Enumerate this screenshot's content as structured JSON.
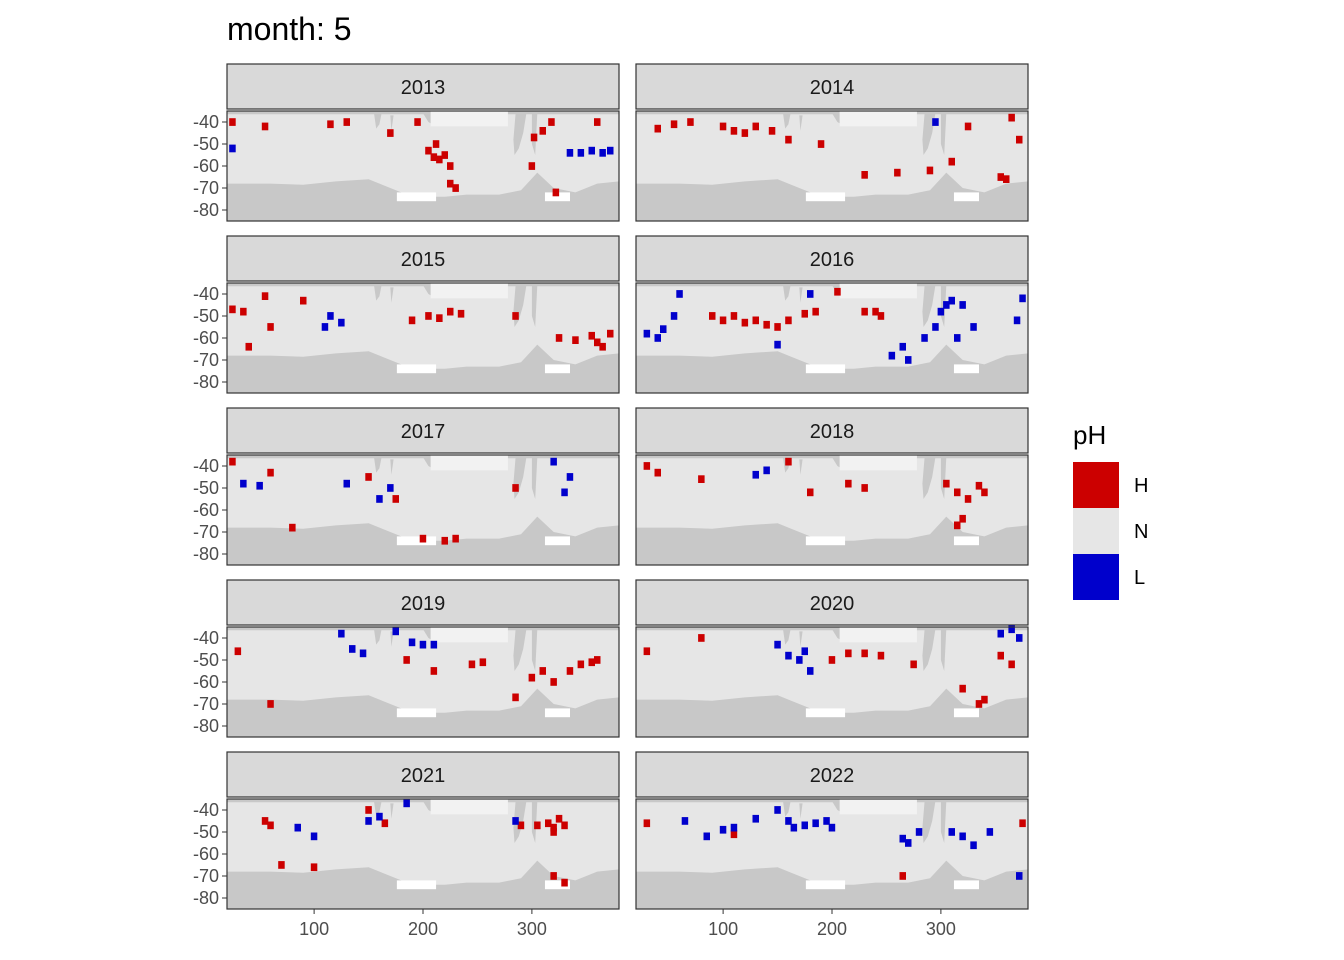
{
  "chart_data": {
    "type": "heatmap",
    "title": "month: 5",
    "facet_by": "year",
    "xlabel": "",
    "ylabel": "",
    "x_ticks": [
      100,
      200,
      300
    ],
    "y_ticks": [
      -40,
      -50,
      -60,
      -70,
      -80
    ],
    "xlim": [
      20,
      380
    ],
    "ylim": [
      -85,
      -35
    ],
    "grid": false,
    "legend": {
      "title": "pH",
      "position": "right",
      "entries": [
        {
          "key": "H",
          "label": "H",
          "color": "#CC0000"
        },
        {
          "key": "N",
          "label": "N",
          "color": "#E6E6E6"
        },
        {
          "key": "L",
          "label": "L",
          "color": "#0000CC"
        }
      ]
    },
    "colors": {
      "land": "#C8C8C8",
      "normal": "#E6E6E6",
      "high": "#CC0000",
      "low": "#0000CC",
      "strip": "#D9D9D9"
    },
    "panels": [
      {
        "year": "2013",
        "high": [
          [
            55,
            -42
          ],
          [
            115,
            -41
          ],
          [
            130,
            -40
          ],
          [
            170,
            -45
          ],
          [
            195,
            -40
          ],
          [
            205,
            -53
          ],
          [
            210,
            -56
          ],
          [
            215,
            -57
          ],
          [
            220,
            -55
          ],
          [
            212,
            -50
          ],
          [
            225,
            -60
          ],
          [
            230,
            -70
          ],
          [
            225,
            -68
          ],
          [
            300,
            -60
          ],
          [
            302,
            -47
          ],
          [
            310,
            -44
          ],
          [
            318,
            -40
          ],
          [
            322,
            -72
          ],
          [
            25,
            -40
          ],
          [
            360,
            -40
          ]
        ],
        "low": [
          [
            335,
            -54
          ],
          [
            345,
            -54
          ],
          [
            355,
            -53
          ],
          [
            365,
            -54
          ],
          [
            372,
            -53
          ],
          [
            25,
            -52
          ]
        ]
      },
      {
        "year": "2014",
        "high": [
          [
            40,
            -43
          ],
          [
            55,
            -41
          ],
          [
            70,
            -40
          ],
          [
            100,
            -42
          ],
          [
            110,
            -44
          ],
          [
            120,
            -45
          ],
          [
            130,
            -42
          ],
          [
            145,
            -44
          ],
          [
            160,
            -48
          ],
          [
            190,
            -50
          ],
          [
            230,
            -64
          ],
          [
            260,
            -63
          ],
          [
            290,
            -62
          ],
          [
            325,
            -42
          ],
          [
            355,
            -65
          ],
          [
            360,
            -66
          ],
          [
            365,
            -38
          ],
          [
            372,
            -48
          ],
          [
            310,
            -58
          ]
        ],
        "low": [
          [
            295,
            -40
          ]
        ]
      },
      {
        "year": "2015",
        "high": [
          [
            25,
            -47
          ],
          [
            35,
            -48
          ],
          [
            55,
            -41
          ],
          [
            60,
            -55
          ],
          [
            90,
            -43
          ],
          [
            190,
            -52
          ],
          [
            205,
            -50
          ],
          [
            215,
            -51
          ],
          [
            225,
            -48
          ],
          [
            235,
            -49
          ],
          [
            285,
            -50
          ],
          [
            325,
            -60
          ],
          [
            340,
            -61
          ],
          [
            355,
            -59
          ],
          [
            360,
            -62
          ],
          [
            365,
            -64
          ],
          [
            372,
            -58
          ],
          [
            40,
            -64
          ]
        ],
        "low": [
          [
            115,
            -50
          ],
          [
            125,
            -53
          ],
          [
            110,
            -55
          ]
        ]
      },
      {
        "year": "2016",
        "high": [
          [
            90,
            -50
          ],
          [
            100,
            -52
          ],
          [
            110,
            -50
          ],
          [
            120,
            -53
          ],
          [
            130,
            -52
          ],
          [
            140,
            -54
          ],
          [
            150,
            -55
          ],
          [
            160,
            -52
          ],
          [
            175,
            -49
          ],
          [
            185,
            -48
          ],
          [
            205,
            -39
          ],
          [
            230,
            -48
          ],
          [
            240,
            -48
          ],
          [
            245,
            -50
          ]
        ],
        "low": [
          [
            30,
            -58
          ],
          [
            40,
            -60
          ],
          [
            45,
            -56
          ],
          [
            55,
            -50
          ],
          [
            60,
            -40
          ],
          [
            150,
            -63
          ],
          [
            180,
            -40
          ],
          [
            255,
            -68
          ],
          [
            265,
            -64
          ],
          [
            270,
            -70
          ],
          [
            285,
            -60
          ],
          [
            295,
            -55
          ],
          [
            300,
            -48
          ],
          [
            305,
            -45
          ],
          [
            310,
            -43
          ],
          [
            320,
            -45
          ],
          [
            315,
            -60
          ],
          [
            330,
            -55
          ],
          [
            375,
            -42
          ],
          [
            370,
            -52
          ]
        ]
      },
      {
        "year": "2017",
        "high": [
          [
            25,
            -38
          ],
          [
            60,
            -43
          ],
          [
            80,
            -68
          ],
          [
            150,
            -45
          ],
          [
            175,
            -55
          ],
          [
            200,
            -73
          ],
          [
            220,
            -74
          ],
          [
            230,
            -73
          ],
          [
            285,
            -50
          ]
        ],
        "low": [
          [
            35,
            -48
          ],
          [
            50,
            -49
          ],
          [
            130,
            -48
          ],
          [
            160,
            -55
          ],
          [
            170,
            -50
          ],
          [
            320,
            -38
          ],
          [
            335,
            -45
          ],
          [
            330,
            -52
          ]
        ]
      },
      {
        "year": "2018",
        "high": [
          [
            30,
            -40
          ],
          [
            40,
            -43
          ],
          [
            80,
            -46
          ],
          [
            160,
            -38
          ],
          [
            180,
            -52
          ],
          [
            215,
            -48
          ],
          [
            230,
            -50
          ],
          [
            305,
            -48
          ],
          [
            315,
            -52
          ],
          [
            325,
            -55
          ],
          [
            335,
            -49
          ],
          [
            340,
            -52
          ],
          [
            315,
            -67
          ],
          [
            320,
            -64
          ]
        ],
        "low": [
          [
            130,
            -44
          ],
          [
            140,
            -42
          ]
        ]
      },
      {
        "year": "2019",
        "high": [
          [
            30,
            -46
          ],
          [
            60,
            -70
          ],
          [
            185,
            -50
          ],
          [
            210,
            -55
          ],
          [
            245,
            -52
          ],
          [
            255,
            -51
          ],
          [
            300,
            -58
          ],
          [
            310,
            -55
          ],
          [
            320,
            -60
          ],
          [
            335,
            -55
          ],
          [
            345,
            -52
          ],
          [
            355,
            -51
          ],
          [
            360,
            -50
          ],
          [
            285,
            -67
          ]
        ],
        "low": [
          [
            125,
            -38
          ],
          [
            135,
            -45
          ],
          [
            145,
            -47
          ],
          [
            175,
            -37
          ],
          [
            190,
            -42
          ],
          [
            200,
            -43
          ],
          [
            210,
            -43
          ]
        ]
      },
      {
        "year": "2020",
        "high": [
          [
            30,
            -46
          ],
          [
            80,
            -40
          ],
          [
            200,
            -50
          ],
          [
            215,
            -47
          ],
          [
            230,
            -47
          ],
          [
            245,
            -48
          ],
          [
            275,
            -52
          ],
          [
            320,
            -63
          ],
          [
            335,
            -70
          ],
          [
            340,
            -68
          ],
          [
            355,
            -48
          ],
          [
            365,
            -52
          ]
        ],
        "low": [
          [
            150,
            -43
          ],
          [
            160,
            -48
          ],
          [
            170,
            -50
          ],
          [
            175,
            -46
          ],
          [
            180,
            -55
          ],
          [
            355,
            -38
          ],
          [
            365,
            -36
          ],
          [
            372,
            -40
          ]
        ]
      },
      {
        "year": "2021",
        "high": [
          [
            55,
            -45
          ],
          [
            60,
            -47
          ],
          [
            70,
            -65
          ],
          [
            100,
            -66
          ],
          [
            150,
            -40
          ],
          [
            165,
            -46
          ],
          [
            290,
            -47
          ],
          [
            305,
            -47
          ],
          [
            315,
            -46
          ],
          [
            320,
            -48
          ],
          [
            325,
            -44
          ],
          [
            330,
            -47
          ],
          [
            320,
            -50
          ],
          [
            320,
            -70
          ],
          [
            330,
            -73
          ]
        ],
        "low": [
          [
            85,
            -48
          ],
          [
            100,
            -52
          ],
          [
            150,
            -45
          ],
          [
            160,
            -43
          ],
          [
            185,
            -37
          ],
          [
            285,
            -45
          ]
        ]
      },
      {
        "year": "2022",
        "high": [
          [
            30,
            -46
          ],
          [
            110,
            -51
          ],
          [
            375,
            -46
          ],
          [
            265,
            -70
          ]
        ],
        "low": [
          [
            65,
            -45
          ],
          [
            85,
            -52
          ],
          [
            100,
            -49
          ],
          [
            110,
            -48
          ],
          [
            130,
            -44
          ],
          [
            150,
            -40
          ],
          [
            160,
            -45
          ],
          [
            165,
            -48
          ],
          [
            175,
            -47
          ],
          [
            185,
            -46
          ],
          [
            195,
            -45
          ],
          [
            200,
            -48
          ],
          [
            265,
            -53
          ],
          [
            270,
            -55
          ],
          [
            280,
            -50
          ],
          [
            310,
            -50
          ],
          [
            320,
            -52
          ],
          [
            330,
            -56
          ],
          [
            345,
            -50
          ],
          [
            372,
            -70
          ]
        ]
      }
    ]
  }
}
